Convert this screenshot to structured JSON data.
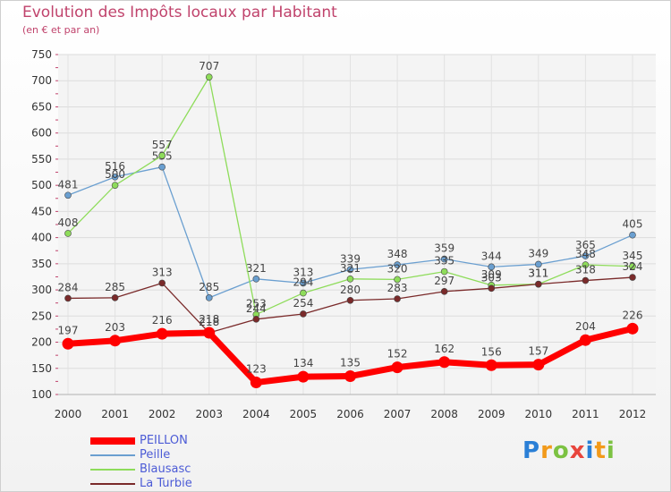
{
  "chart_data": {
    "type": "line",
    "title": "Evolution des Impôts locaux par Habitant",
    "subtitle": "(en € et par an)",
    "xlabel": "",
    "ylabel": "",
    "ylim": [
      100,
      750
    ],
    "yticks": [
      100,
      150,
      200,
      250,
      300,
      350,
      400,
      450,
      500,
      550,
      600,
      650,
      700,
      750
    ],
    "categories": [
      "2000",
      "2001",
      "2002",
      "2003",
      "2004",
      "2005",
      "2006",
      "2007",
      "2008",
      "2009",
      "2010",
      "2011",
      "2012"
    ],
    "grid": true,
    "legend_position": "bottom-left",
    "series": [
      {
        "name": "PEILLON",
        "color": "#ff0000",
        "emphasis": true,
        "values": [
          197,
          203,
          216,
          218,
          123,
          134,
          135,
          152,
          162,
          156,
          157,
          204,
          226
        ],
        "labels": [
          "197",
          "203",
          "216",
          "218",
          "123",
          "134",
          "135",
          "152",
          "162",
          "156",
          "157",
          "204",
          "226"
        ]
      },
      {
        "name": "Peille",
        "color": "#6a9fd0",
        "emphasis": false,
        "values": [
          481,
          516,
          535,
          285,
          321,
          313,
          339,
          348,
          359,
          344,
          349,
          365,
          405
        ],
        "labels": [
          "481",
          "516",
          "535",
          "285",
          "321",
          "313",
          "339",
          "348",
          "359",
          "344",
          "349",
          "365",
          "405"
        ]
      },
      {
        "name": "Blausasc",
        "color": "#8edc5a",
        "emphasis": false,
        "values": [
          408,
          500,
          557,
          707,
          253,
          294,
          321,
          320,
          335,
          309,
          311,
          348,
          345
        ],
        "labels": [
          "408",
          "500",
          "557",
          "707",
          "253",
          "294",
          "321",
          "320",
          "335",
          "309",
          "311",
          "348",
          "345"
        ]
      },
      {
        "name": "La Turbie",
        "color": "#7a2a2a",
        "emphasis": false,
        "values": [
          284,
          285,
          313,
          218,
          244,
          254,
          280,
          283,
          297,
          303,
          311,
          318,
          324
        ],
        "labels": [
          "284",
          "285",
          "313",
          "218",
          "244",
          "254",
          "280",
          "283",
          "297",
          "303",
          "311",
          "318",
          "324"
        ]
      }
    ]
  },
  "brand": {
    "logo_letters": [
      "P",
      "r",
      "o",
      "x",
      "i",
      "t",
      "i"
    ],
    "logo_colors": [
      "#2a7fd6",
      "#f29a1a",
      "#7cc242",
      "#e8453c",
      "#2a7fd6",
      "#f29a1a",
      "#7cc242"
    ]
  }
}
